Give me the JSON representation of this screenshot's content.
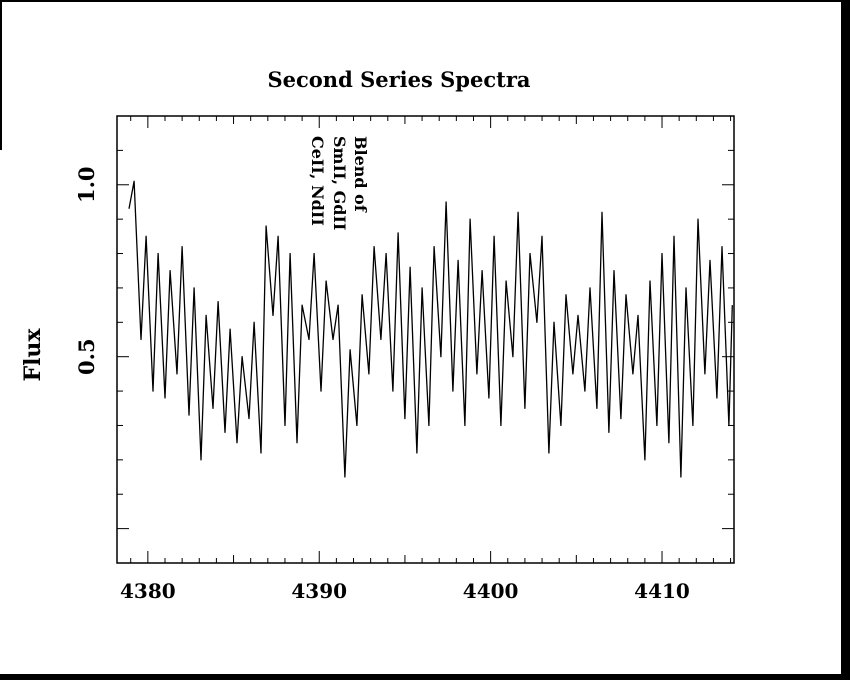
{
  "chart_data": {
    "type": "line",
    "title": "Second Series Spectra",
    "xlabel": "",
    "ylabel": "Flux",
    "xlim": [
      4378.2,
      4414.2
    ],
    "ylim": [
      -0.1,
      1.2
    ],
    "x_ticks": [
      4380,
      4390,
      4400,
      4410
    ],
    "x_tick_labels": [
      "4380",
      "4390",
      "4400",
      "4410"
    ],
    "y_ticks": [
      0.5,
      1.0
    ],
    "y_tick_labels": [
      "0.5",
      "1.0"
    ],
    "grid": false,
    "annotation": {
      "lines": [
        "Blend of",
        "SmII, GdII",
        "CeII, NdII"
      ],
      "x": 4390.6
    },
    "series": [
      {
        "color": "#000000",
        "x": [
          4378.9,
          4379.2,
          4379.6,
          4379.9,
          4380.3,
          4380.6,
          4381.0,
          4381.3,
          4381.7,
          4382.0,
          4382.4,
          4382.7,
          4383.1,
          4383.4,
          4383.8,
          4384.1,
          4384.5,
          4384.8,
          4385.2,
          4385.5,
          4385.9,
          4386.2,
          4386.6,
          4386.9,
          4387.3,
          4387.6,
          4388.0,
          4388.3,
          4388.7,
          4389.0,
          4389.4,
          4389.7,
          4390.1,
          4390.4,
          4390.8,
          4391.1,
          4391.5,
          4391.8,
          4392.2,
          4392.5,
          4392.9,
          4393.2,
          4393.6,
          4393.9,
          4394.3,
          4394.6,
          4395.0,
          4395.3,
          4395.7,
          4396.0,
          4396.4,
          4396.7,
          4397.1,
          4397.4,
          4397.8,
          4398.1,
          4398.5,
          4398.8,
          4399.2,
          4399.5,
          4399.9,
          4400.2,
          4400.6,
          4400.9,
          4401.3,
          4401.6,
          4402.0,
          4402.3,
          4402.7,
          4403.0,
          4403.4,
          4403.7,
          4404.1,
          4404.4,
          4404.8,
          4405.1,
          4405.5,
          4405.8,
          4406.2,
          4406.5,
          4406.9,
          4407.2,
          4407.6,
          4407.9,
          4408.3,
          4408.6,
          4409.0,
          4409.3,
          4409.7,
          4410.0,
          4410.4,
          4410.7,
          4411.1,
          4411.4,
          4411.8,
          4412.1,
          4412.5,
          4412.8,
          4413.2,
          4413.5,
          4413.9,
          4414.1
        ],
        "y": [
          0.93,
          1.01,
          0.55,
          0.85,
          0.4,
          0.8,
          0.38,
          0.75,
          0.45,
          0.82,
          0.33,
          0.7,
          0.2,
          0.62,
          0.35,
          0.66,
          0.28,
          0.58,
          0.25,
          0.5,
          0.32,
          0.6,
          0.22,
          0.88,
          0.62,
          0.85,
          0.3,
          0.8,
          0.25,
          0.65,
          0.55,
          0.8,
          0.4,
          0.72,
          0.55,
          0.65,
          0.15,
          0.52,
          0.3,
          0.68,
          0.45,
          0.82,
          0.55,
          0.8,
          0.4,
          0.86,
          0.32,
          0.76,
          0.22,
          0.7,
          0.3,
          0.82,
          0.5,
          0.95,
          0.4,
          0.78,
          0.3,
          0.9,
          0.45,
          0.75,
          0.38,
          0.85,
          0.3,
          0.72,
          0.5,
          0.92,
          0.35,
          0.8,
          0.6,
          0.85,
          0.22,
          0.6,
          0.3,
          0.68,
          0.45,
          0.62,
          0.4,
          0.7,
          0.35,
          0.92,
          0.28,
          0.75,
          0.32,
          0.68,
          0.45,
          0.62,
          0.2,
          0.72,
          0.3,
          0.8,
          0.25,
          0.85,
          0.15,
          0.7,
          0.3,
          0.9,
          0.45,
          0.78,
          0.38,
          0.82,
          0.3,
          0.65
        ]
      }
    ]
  }
}
